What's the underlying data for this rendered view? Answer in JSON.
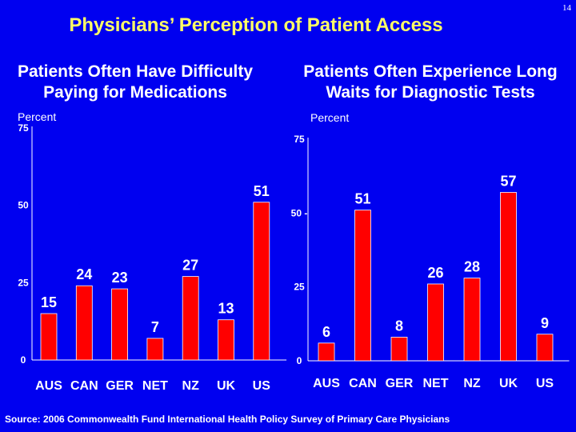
{
  "page_number": "14",
  "title": "Physicians’ Perception of Patient Access",
  "source": "Source: 2006 Commonwealth Fund International Health Policy Survey of Primary Care Physicians",
  "colors": {
    "background": "#0000F0",
    "bar": "#FF0000",
    "title": "#FFFF66",
    "text": "#FFFFFF"
  },
  "chart_data": [
    {
      "type": "bar",
      "title_lines": [
        "Patients Often Have Difficulty",
        "Paying for Medications"
      ],
      "ylabel": "Percent",
      "xlabel": "",
      "ylim": [
        0,
        75
      ],
      "yticks": [
        0,
        25,
        50,
        75
      ],
      "categories": [
        "AUS",
        "CAN",
        "GER",
        "NET",
        "NZ",
        "UK",
        "US"
      ],
      "values": [
        15,
        24,
        23,
        7,
        27,
        13,
        51
      ],
      "grid": false,
      "legend": "none"
    },
    {
      "type": "bar",
      "title_lines": [
        "Patients Often Experience Long",
        "Waits for Diagnostic Tests"
      ],
      "ylabel": "Percent",
      "xlabel": "",
      "ylim": [
        0,
        75
      ],
      "yticks": [
        0,
        25,
        50,
        75
      ],
      "ytick_labels": [
        "0",
        "25",
        "50 -",
        "75"
      ],
      "categories": [
        "AUS",
        "CAN",
        "GER",
        "NET",
        "NZ",
        "UK",
        "US"
      ],
      "values": [
        6,
        51,
        8,
        26,
        28,
        57,
        9
      ],
      "grid": false,
      "legend": "none"
    }
  ]
}
